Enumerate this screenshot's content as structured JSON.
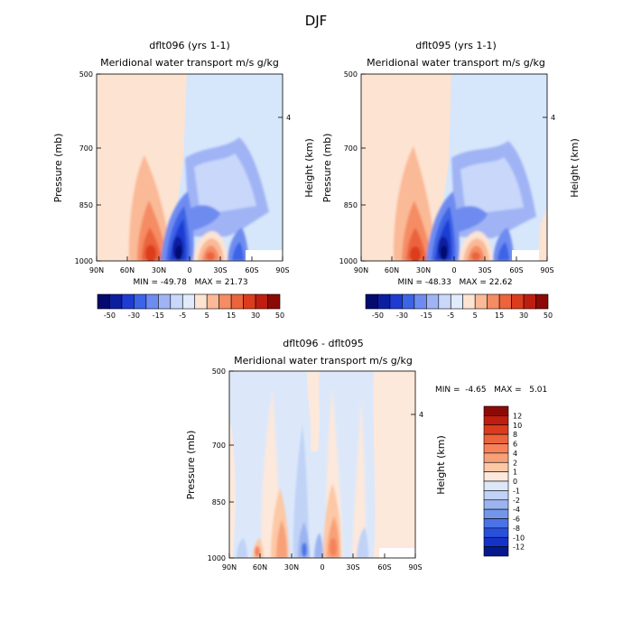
{
  "figure_title": "DJF",
  "chart_data": [
    {
      "type": "heatmap",
      "title": "dflt096 (yrs 1-1)",
      "subtitle": "Meridional water transport m/s g/kg",
      "xlabel": "",
      "ylabel": "Pressure (mb)",
      "ylabel_right": "Height (km)",
      "x_ticks": [
        "90N",
        "60N",
        "30N",
        "0",
        "30S",
        "60S",
        "90S"
      ],
      "y_ticks": [
        "500",
        "700",
        "850",
        "1000"
      ],
      "right_ticks": [
        "4"
      ],
      "xlim": [
        90,
        -90
      ],
      "ylim": [
        1000,
        500
      ],
      "stats": "MIN = -49.78   MAX = 21.73",
      "min": -49.78,
      "max": 21.73,
      "levels": [
        "-50",
        "-30",
        "-15",
        "-5",
        "5",
        "15",
        "30",
        "50"
      ],
      "features": [
        {
          "lat": 38,
          "p": 935,
          "value": 22,
          "note": "northern positive maximum"
        },
        {
          "lat": 5,
          "p": 950,
          "value": -50,
          "note": "tropical negative minimum"
        },
        {
          "lat": -30,
          "p": 945,
          "value": 20,
          "note": "southern subtropical positive"
        },
        {
          "lat": -55,
          "p": 960,
          "value": -25,
          "note": "southern midlatitude negative"
        }
      ]
    },
    {
      "type": "heatmap",
      "title": "dflt095 (yrs 1-1)",
      "subtitle": "Meridional water transport m/s g/kg",
      "xlabel": "",
      "ylabel": "Pressure (mb)",
      "ylabel_right": "Height (km)",
      "x_ticks": [
        "90N",
        "60N",
        "30N",
        "0",
        "30S",
        "60S",
        "90S"
      ],
      "y_ticks": [
        "500",
        "700",
        "850",
        "1000"
      ],
      "right_ticks": [
        "4"
      ],
      "xlim": [
        90,
        -90
      ],
      "ylim": [
        1000,
        500
      ],
      "stats": "MIN = -48.33   MAX = 22.62",
      "min": -48.33,
      "max": 22.62,
      "levels": [
        "-50",
        "-30",
        "-15",
        "-5",
        "5",
        "15",
        "30",
        "50"
      ],
      "features": [
        {
          "lat": 38,
          "p": 935,
          "value": 23,
          "note": "northern positive maximum"
        },
        {
          "lat": 5,
          "p": 950,
          "value": -48,
          "note": "tropical negative minimum"
        },
        {
          "lat": -30,
          "p": 945,
          "value": 21,
          "note": "southern subtropical positive"
        },
        {
          "lat": -55,
          "p": 960,
          "value": -26,
          "note": "southern midlatitude negative"
        }
      ]
    },
    {
      "type": "heatmap",
      "title": "dflt096 - dflt095",
      "subtitle": "Meridional water transport m/s g/kg",
      "xlabel": "",
      "ylabel": "Pressure (mb)",
      "ylabel_right": "Height (km)",
      "x_ticks": [
        "90N",
        "60N",
        "30N",
        "0",
        "30S",
        "60S",
        "90S"
      ],
      "y_ticks": [
        "500",
        "700",
        "850",
        "1000"
      ],
      "right_ticks": [
        "4"
      ],
      "xlim": [
        90,
        -90
      ],
      "ylim": [
        1000,
        500
      ],
      "stats": "MIN =  -4.65   MAX =   5.01",
      "min": -4.65,
      "max": 5.01,
      "levels": [
        "12",
        "10",
        "8",
        "6",
        "4",
        "2",
        "1",
        "0",
        "-1",
        "-2",
        "-4",
        "-6",
        "-8",
        "-10",
        "-12"
      ]
    }
  ],
  "colors": {
    "shared_scale": [
      "#050a6e",
      "#0c1ea0",
      "#1e3cd2",
      "#3c64e6",
      "#6e8cf0",
      "#a0b4f5",
      "#c8d7fa",
      "#e1ebfc",
      "#fde3d2",
      "#fab997",
      "#f58c64",
      "#eb643c",
      "#dc3c1e",
      "#be1e0f",
      "#8c0a05"
    ],
    "diff_scale": [
      "#8c0a05",
      "#be1e0f",
      "#dc3c1e",
      "#eb643c",
      "#f5825a",
      "#f8a078",
      "#fcc8a5",
      "#fde8dc",
      "#dce8fa",
      "#c0d2f5",
      "#9bb4f0",
      "#7396eb",
      "#4b73e6",
      "#2850dc",
      "#1432c8",
      "#06188c"
    ]
  }
}
